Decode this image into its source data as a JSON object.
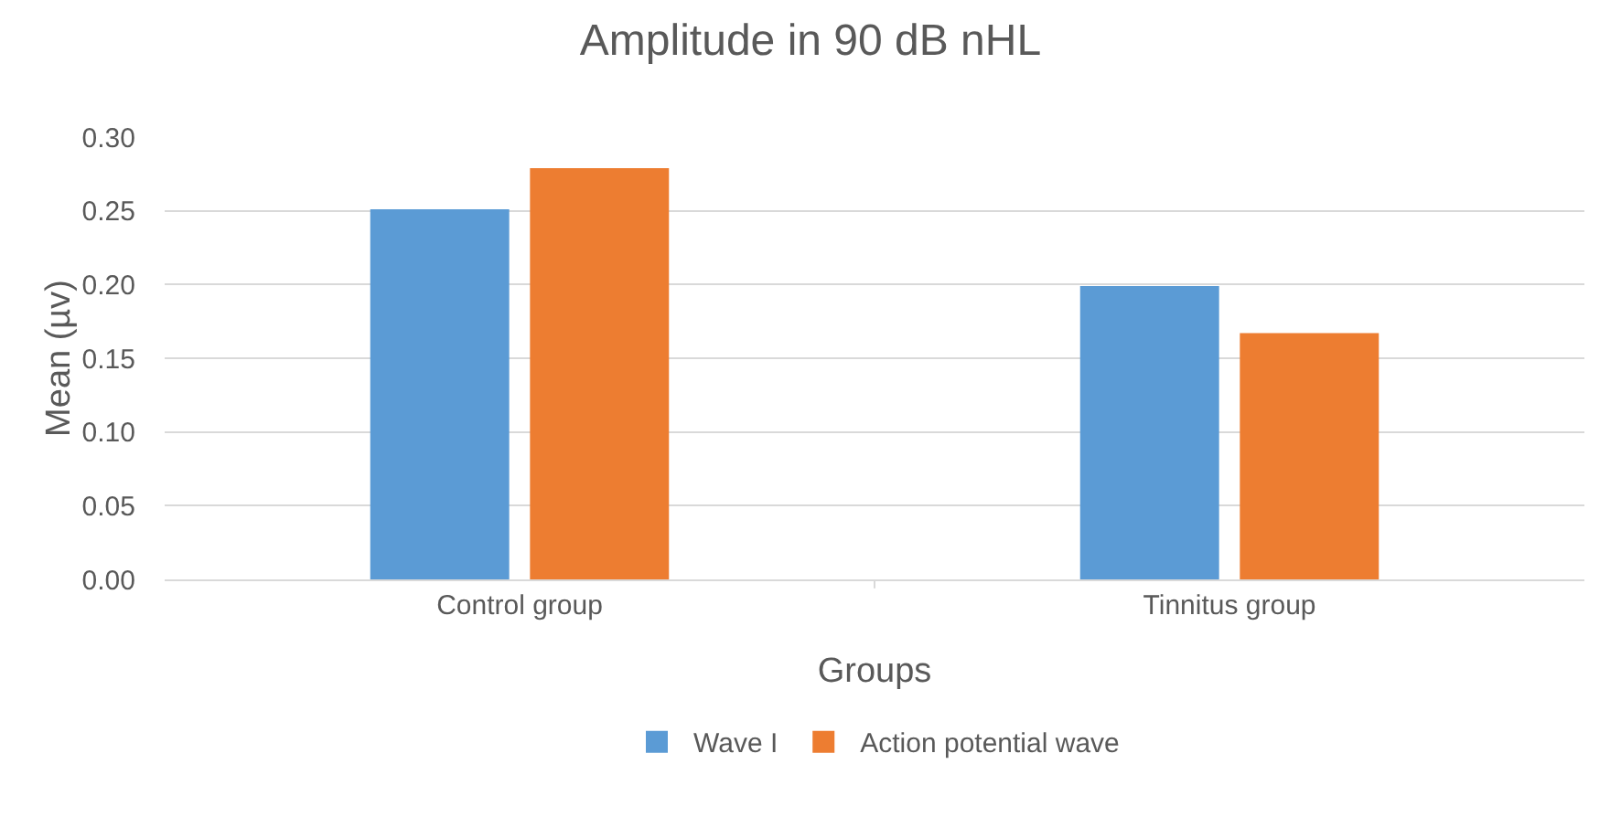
{
  "chart_data": {
    "type": "bar",
    "title": "Amplitude in 90 dB nHL",
    "xlabel": "Groups",
    "ylabel": "Mean (µv)",
    "categories": [
      "Control group",
      "Tinnitus group"
    ],
    "series": [
      {
        "name": "Wave I",
        "color": "#5b9bd5",
        "values": [
          0.251,
          0.199
        ]
      },
      {
        "name": "Action potential wave",
        "color": "#ed7d31",
        "values": [
          0.279,
          0.167
        ]
      }
    ],
    "ylim": [
      0,
      0.3
    ],
    "yticks": [
      {
        "value": 0,
        "label": "0.00"
      },
      {
        "value": 0.05,
        "label": "0.05"
      },
      {
        "value": 0.1,
        "label": "0.10"
      },
      {
        "value": 0.15,
        "label": "0.15"
      },
      {
        "value": 0.2,
        "label": "0.20"
      },
      {
        "value": 0.25,
        "label": "0.25"
      },
      {
        "value": 0.3,
        "label": "0.30"
      }
    ],
    "grid": "y",
    "legend": "bottom"
  }
}
